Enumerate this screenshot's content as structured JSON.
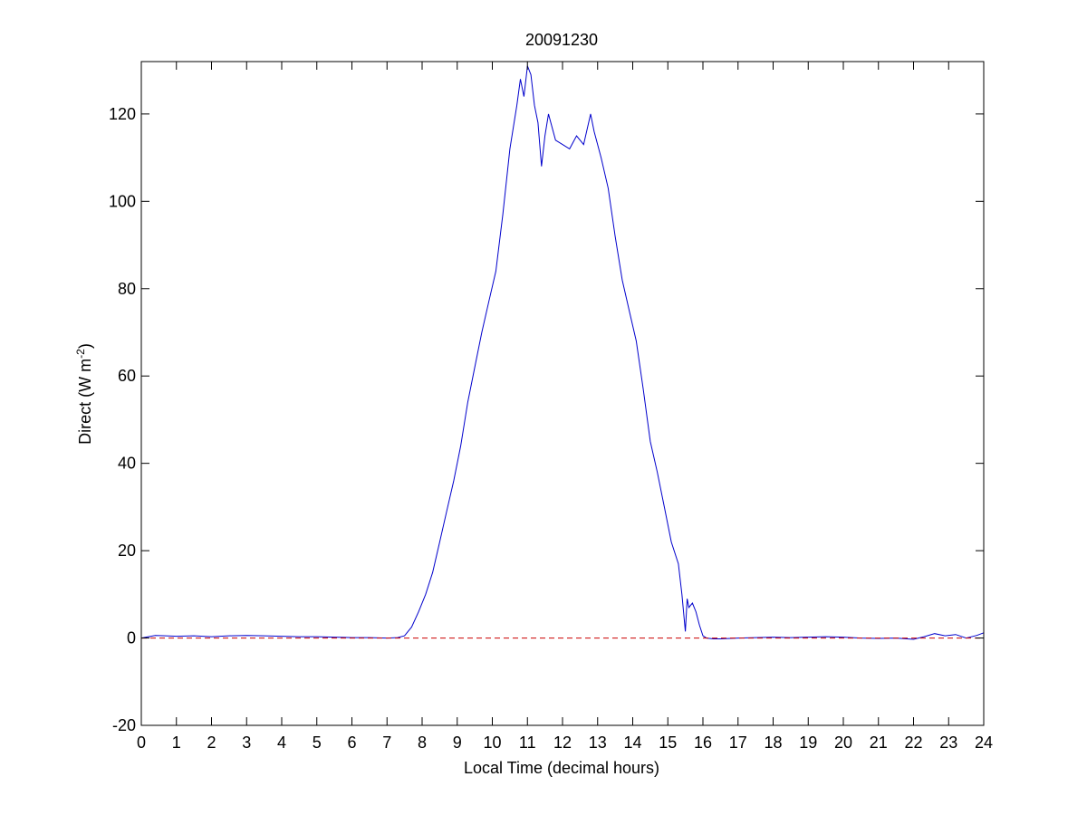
{
  "chart_data": {
    "type": "line",
    "title": "20091230",
    "xlabel": "Local Time (decimal hours)",
    "ylabel": {
      "base": "Direct (W m",
      "superscript": "-2",
      "close": ")"
    },
    "xlim": [
      0,
      24
    ],
    "ylim": [
      -20,
      132
    ],
    "xticks": [
      0,
      1,
      2,
      3,
      4,
      5,
      6,
      7,
      8,
      9,
      10,
      11,
      12,
      13,
      14,
      15,
      16,
      17,
      18,
      19,
      20,
      21,
      22,
      23,
      24
    ],
    "yticks": [
      -20,
      0,
      20,
      40,
      60,
      80,
      100,
      120
    ],
    "grid": false,
    "legend": "none",
    "series": [
      {
        "color": "#0000cc",
        "style": "solid",
        "x": [
          0,
          0.2,
          0.4,
          0.7,
          1.0,
          1.5,
          2.0,
          2.5,
          3.0,
          3.5,
          4.0,
          4.5,
          5.0,
          5.5,
          6.0,
          6.5,
          7.0,
          7.3,
          7.5,
          7.7,
          7.9,
          8.1,
          8.3,
          8.5,
          8.7,
          8.9,
          9.1,
          9.3,
          9.5,
          9.7,
          9.9,
          10.1,
          10.3,
          10.5,
          10.7,
          10.8,
          10.9,
          11.0,
          11.1,
          11.2,
          11.3,
          11.4,
          11.5,
          11.6,
          11.8,
          12.0,
          12.2,
          12.4,
          12.6,
          12.8,
          12.9,
          13.1,
          13.3,
          13.5,
          13.7,
          13.9,
          14.1,
          14.3,
          14.5,
          14.7,
          14.9,
          15.1,
          15.3,
          15.4,
          15.5,
          15.55,
          15.6,
          15.7,
          15.8,
          15.9,
          16.0,
          16.1,
          16.3,
          16.5,
          17.0,
          17.5,
          18.0,
          18.5,
          19.0,
          19.5,
          20.0,
          20.5,
          21.0,
          21.5,
          22.0,
          22.3,
          22.6,
          22.9,
          23.2,
          23.5,
          23.8,
          24.0
        ],
        "y": [
          0,
          0.3,
          0.6,
          0.5,
          0.4,
          0.5,
          0.3,
          0.5,
          0.6,
          0.5,
          0.4,
          0.3,
          0.3,
          0.2,
          0.1,
          0.1,
          0,
          0.1,
          0.5,
          2.5,
          6,
          10,
          15,
          22,
          29,
          36,
          44,
          54,
          62,
          70,
          77,
          84,
          97,
          112,
          122,
          128,
          124,
          131,
          129,
          122,
          118,
          108,
          115,
          120,
          114,
          113,
          112,
          115,
          113,
          120,
          116,
          110,
          103,
          92,
          82,
          75,
          68,
          57,
          45,
          38,
          30,
          22,
          17,
          10,
          1.5,
          9,
          7,
          8,
          6,
          3,
          0.5,
          0,
          -0.2,
          -0.2,
          0,
          0.1,
          0.2,
          0.1,
          0.2,
          0.3,
          0.2,
          0,
          -0.1,
          0,
          -0.3,
          0.3,
          1,
          0.5,
          0.8,
          0,
          0.6,
          1.2
        ]
      },
      {
        "color": "#cc0000",
        "style": "dashed",
        "x": [
          0,
          24
        ],
        "y": [
          0,
          0
        ]
      }
    ]
  }
}
